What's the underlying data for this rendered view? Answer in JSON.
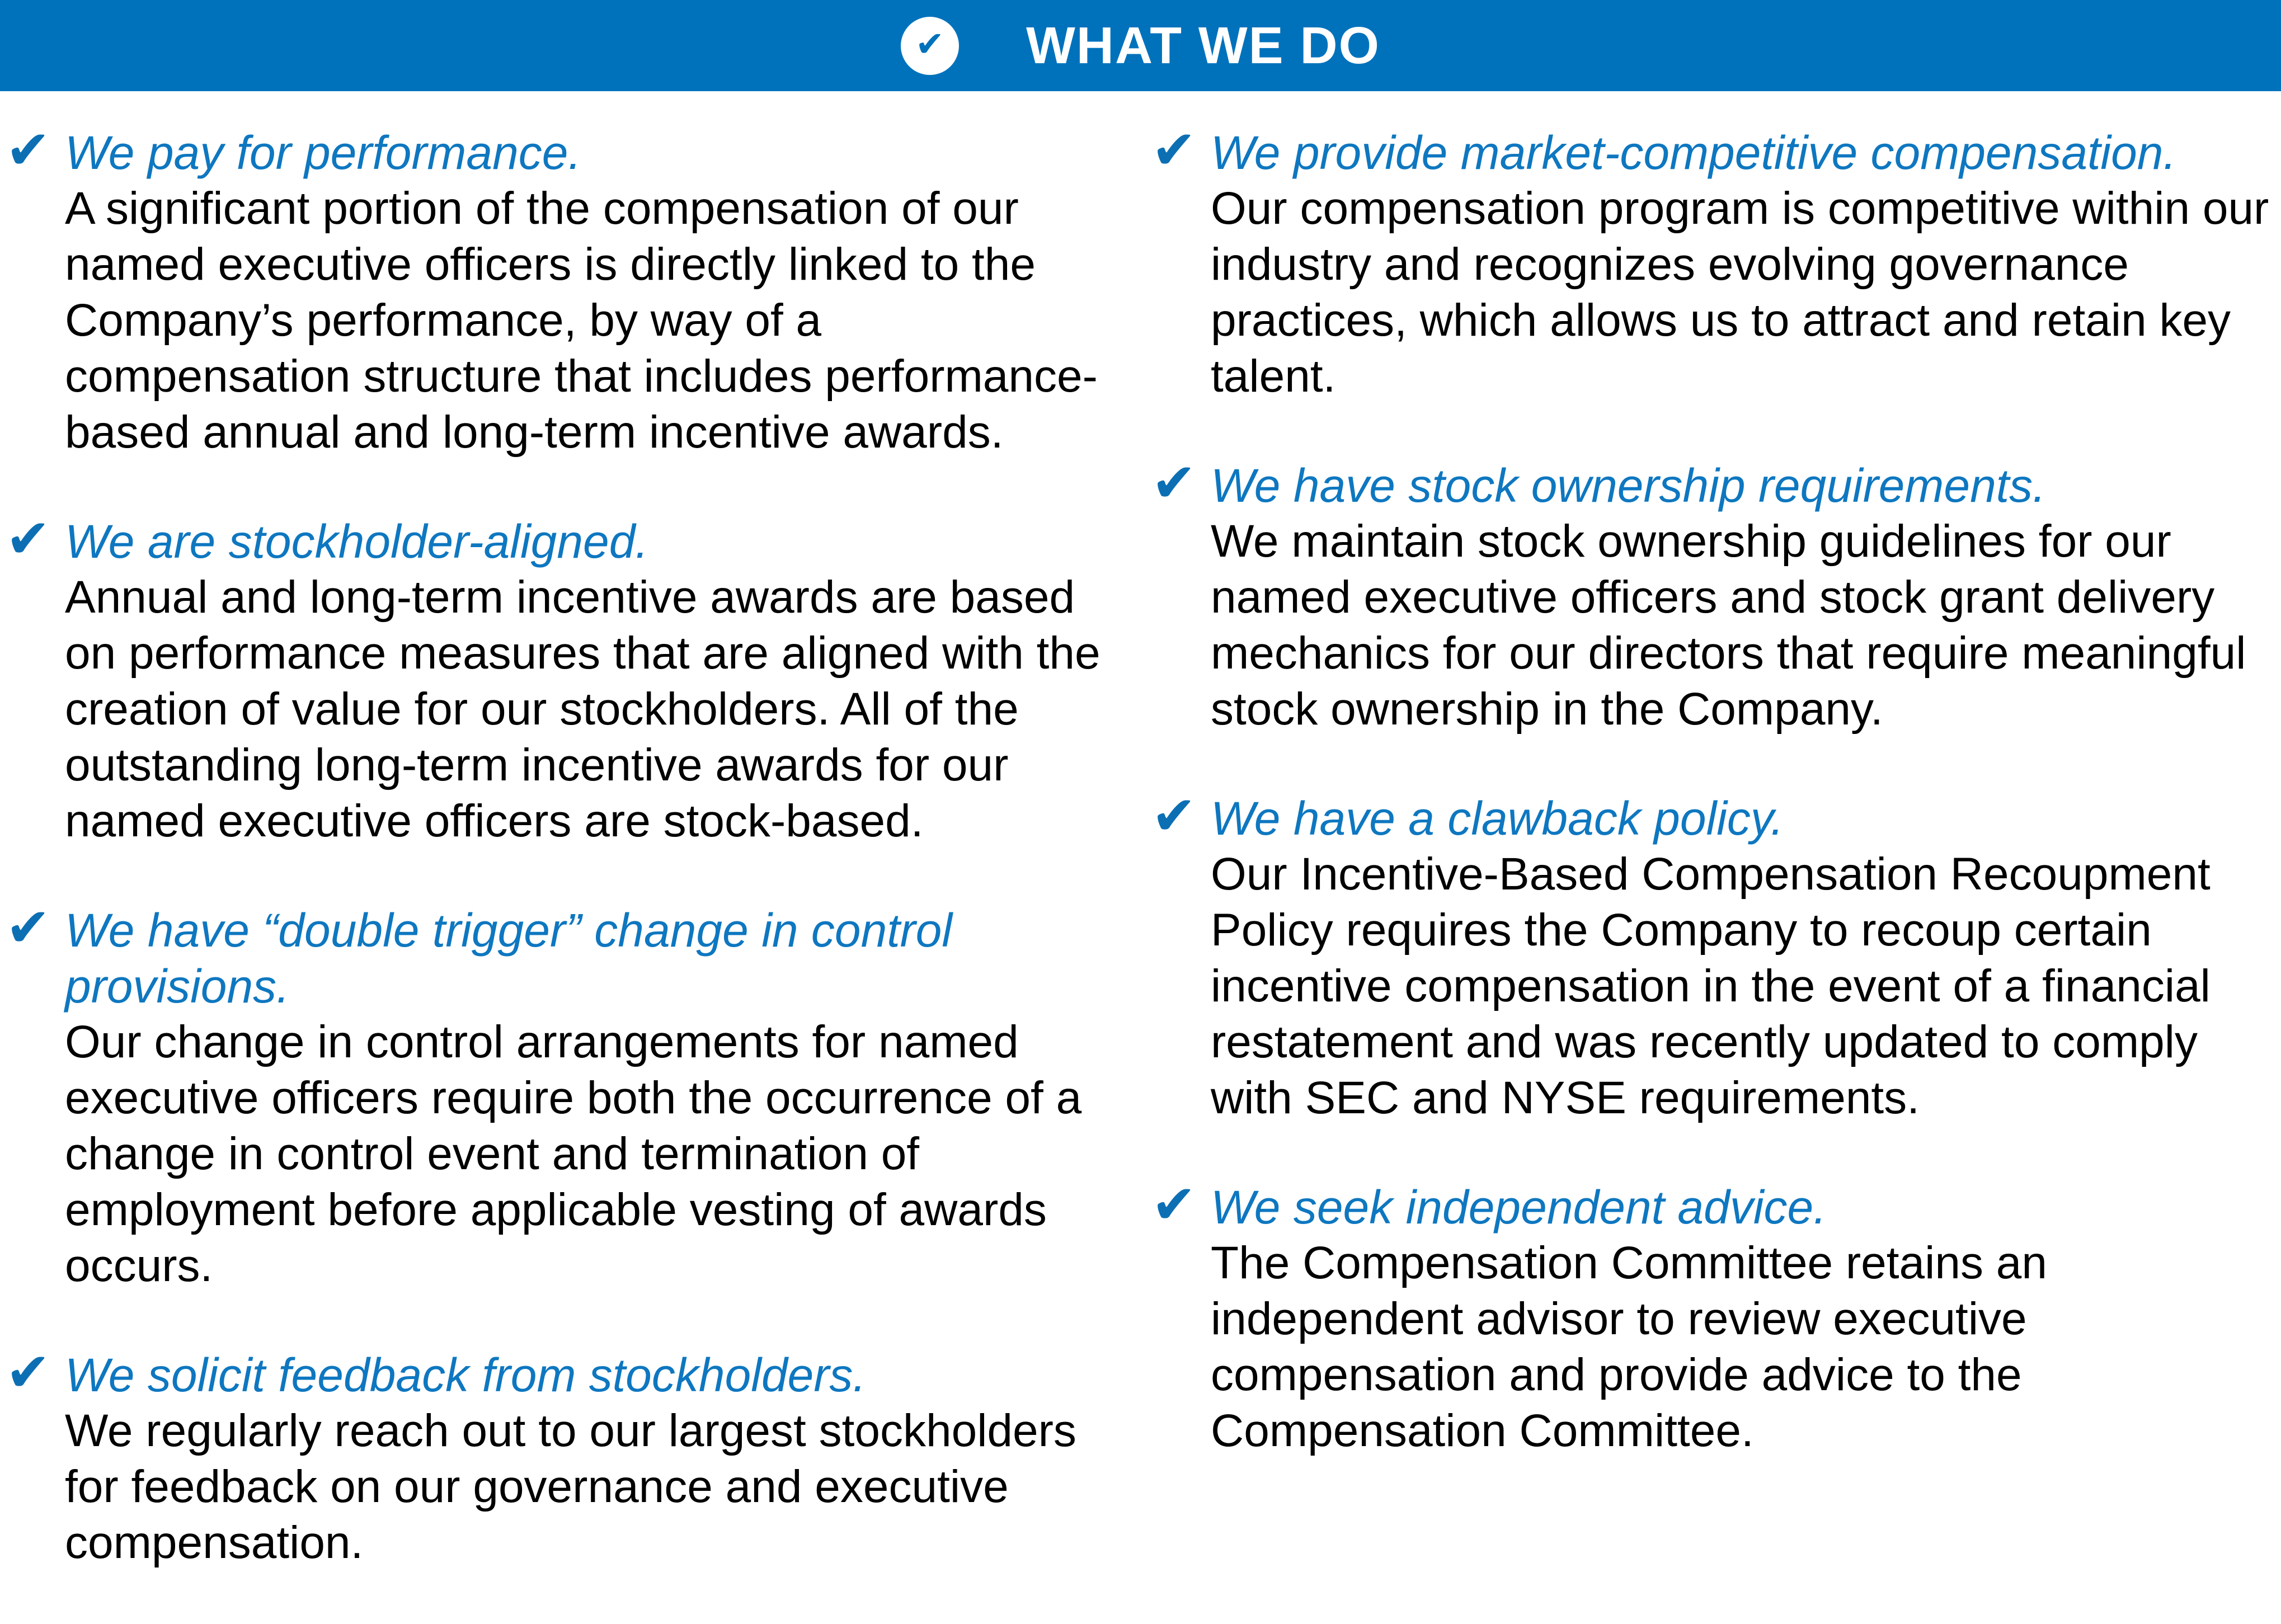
{
  "header": {
    "title": "WHAT WE DO"
  },
  "icons": {
    "check": "✔",
    "badge_check": "✔"
  },
  "colors": {
    "header_bar": "#0072bc",
    "header_text": "#ffffff",
    "badge_circle": "#ffffff",
    "badge_check": "#0072bc",
    "item_check": "#0c6fb4",
    "heading_text": "#0e77c0",
    "body_text": "#000000",
    "background": "#ffffff"
  },
  "columns": {
    "left": {
      "items": [
        {
          "heading": "We pay for performance.",
          "body": "A significant portion of the compensation of our named executive officers is directly linked to the Company’s performance, by way of a compensation structure that includes performance-based annual and long-term incentive awards."
        },
        {
          "heading": "We are stockholder-aligned.",
          "body": "Annual and long-term incentive awards are based on performance measures that are aligned with the creation of value for our stockholders. All of the outstanding long-term incentive awards for our named executive officers are stock-based."
        },
        {
          "heading": "We have “double trigger” change in control provisions.",
          "body": "Our change in control arrangements for named executive officers require both the occurrence of a change in control event and termination of employment before applicable vesting of awards occurs."
        },
        {
          "heading": "We solicit feedback from stockholders.",
          "body": "We regularly reach out to our largest stockholders for feedback on our governance and executive compensation."
        }
      ]
    },
    "right": {
      "items": [
        {
          "heading": "We provide market-competitive compensation.",
          "body": "Our compensation program is competitive within our industry and recognizes evolving governance practices, which allows us to attract and retain key talent."
        },
        {
          "heading": "We have stock ownership requirements.",
          "body": "We maintain stock ownership guidelines for our named executive officers and stock grant delivery mechanics for our directors that require meaningful stock ownership in the Company."
        },
        {
          "heading": "We have a clawback policy.",
          "body": "Our Incentive-Based Compensation Recoupment Policy requires the Company to recoup certain incentive compensation in the event of a financial restatement and was recently updated to comply with SEC and NYSE requirements."
        },
        {
          "heading": "We seek independent advice.",
          "body": "The Compensation Committee retains an independent advisor to review executive compensation and provide advice to the Compensation Committee."
        }
      ]
    }
  }
}
